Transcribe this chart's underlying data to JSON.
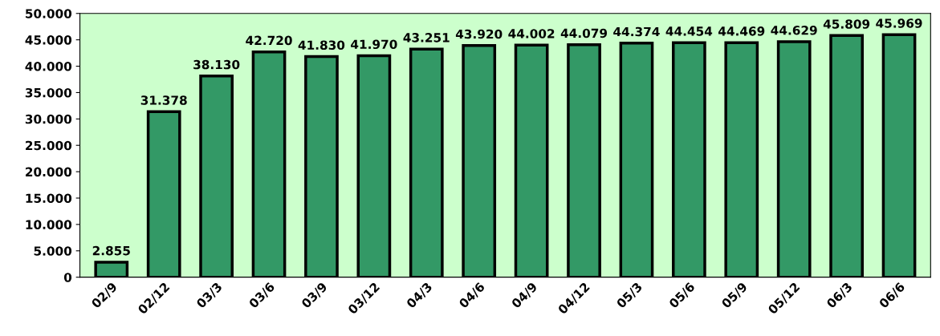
{
  "chart_data": {
    "type": "bar",
    "categories": [
      "02/9",
      "02/12",
      "03/3",
      "03/6",
      "03/9",
      "03/12",
      "04/3",
      "04/6",
      "04/9",
      "04/12",
      "05/3",
      "05/6",
      "05/9",
      "05/12",
      "06/3",
      "06/6"
    ],
    "values": [
      2855,
      31378,
      38130,
      42720,
      41830,
      41970,
      43251,
      43920,
      44002,
      44079,
      44374,
      44454,
      44469,
      44629,
      45809,
      45969
    ],
    "value_labels": [
      "2.855",
      "31.378",
      "38.130",
      "42.720",
      "41.830",
      "41.970",
      "43.251",
      "43.920",
      "44.002",
      "44.079",
      "44.374",
      "44.454",
      "44.469",
      "44.629",
      "45.809",
      "45.969"
    ],
    "color": "#339966",
    "ylim": [
      0,
      50000
    ],
    "yticks": [
      {
        "value": 0,
        "label": "0"
      },
      {
        "value": 5000,
        "label": "5.000"
      },
      {
        "value": 10000,
        "label": "10.000"
      },
      {
        "value": 15000,
        "label": "15.000"
      },
      {
        "value": 20000,
        "label": "20.000"
      },
      {
        "value": 25000,
        "label": "25.000"
      },
      {
        "value": 30000,
        "label": "30.000"
      },
      {
        "value": 35000,
        "label": "35.000"
      },
      {
        "value": 40000,
        "label": "40.000"
      },
      {
        "value": 45000,
        "label": "45.000"
      },
      {
        "value": 50000,
        "label": "50.000"
      }
    ],
    "grid": false
  }
}
